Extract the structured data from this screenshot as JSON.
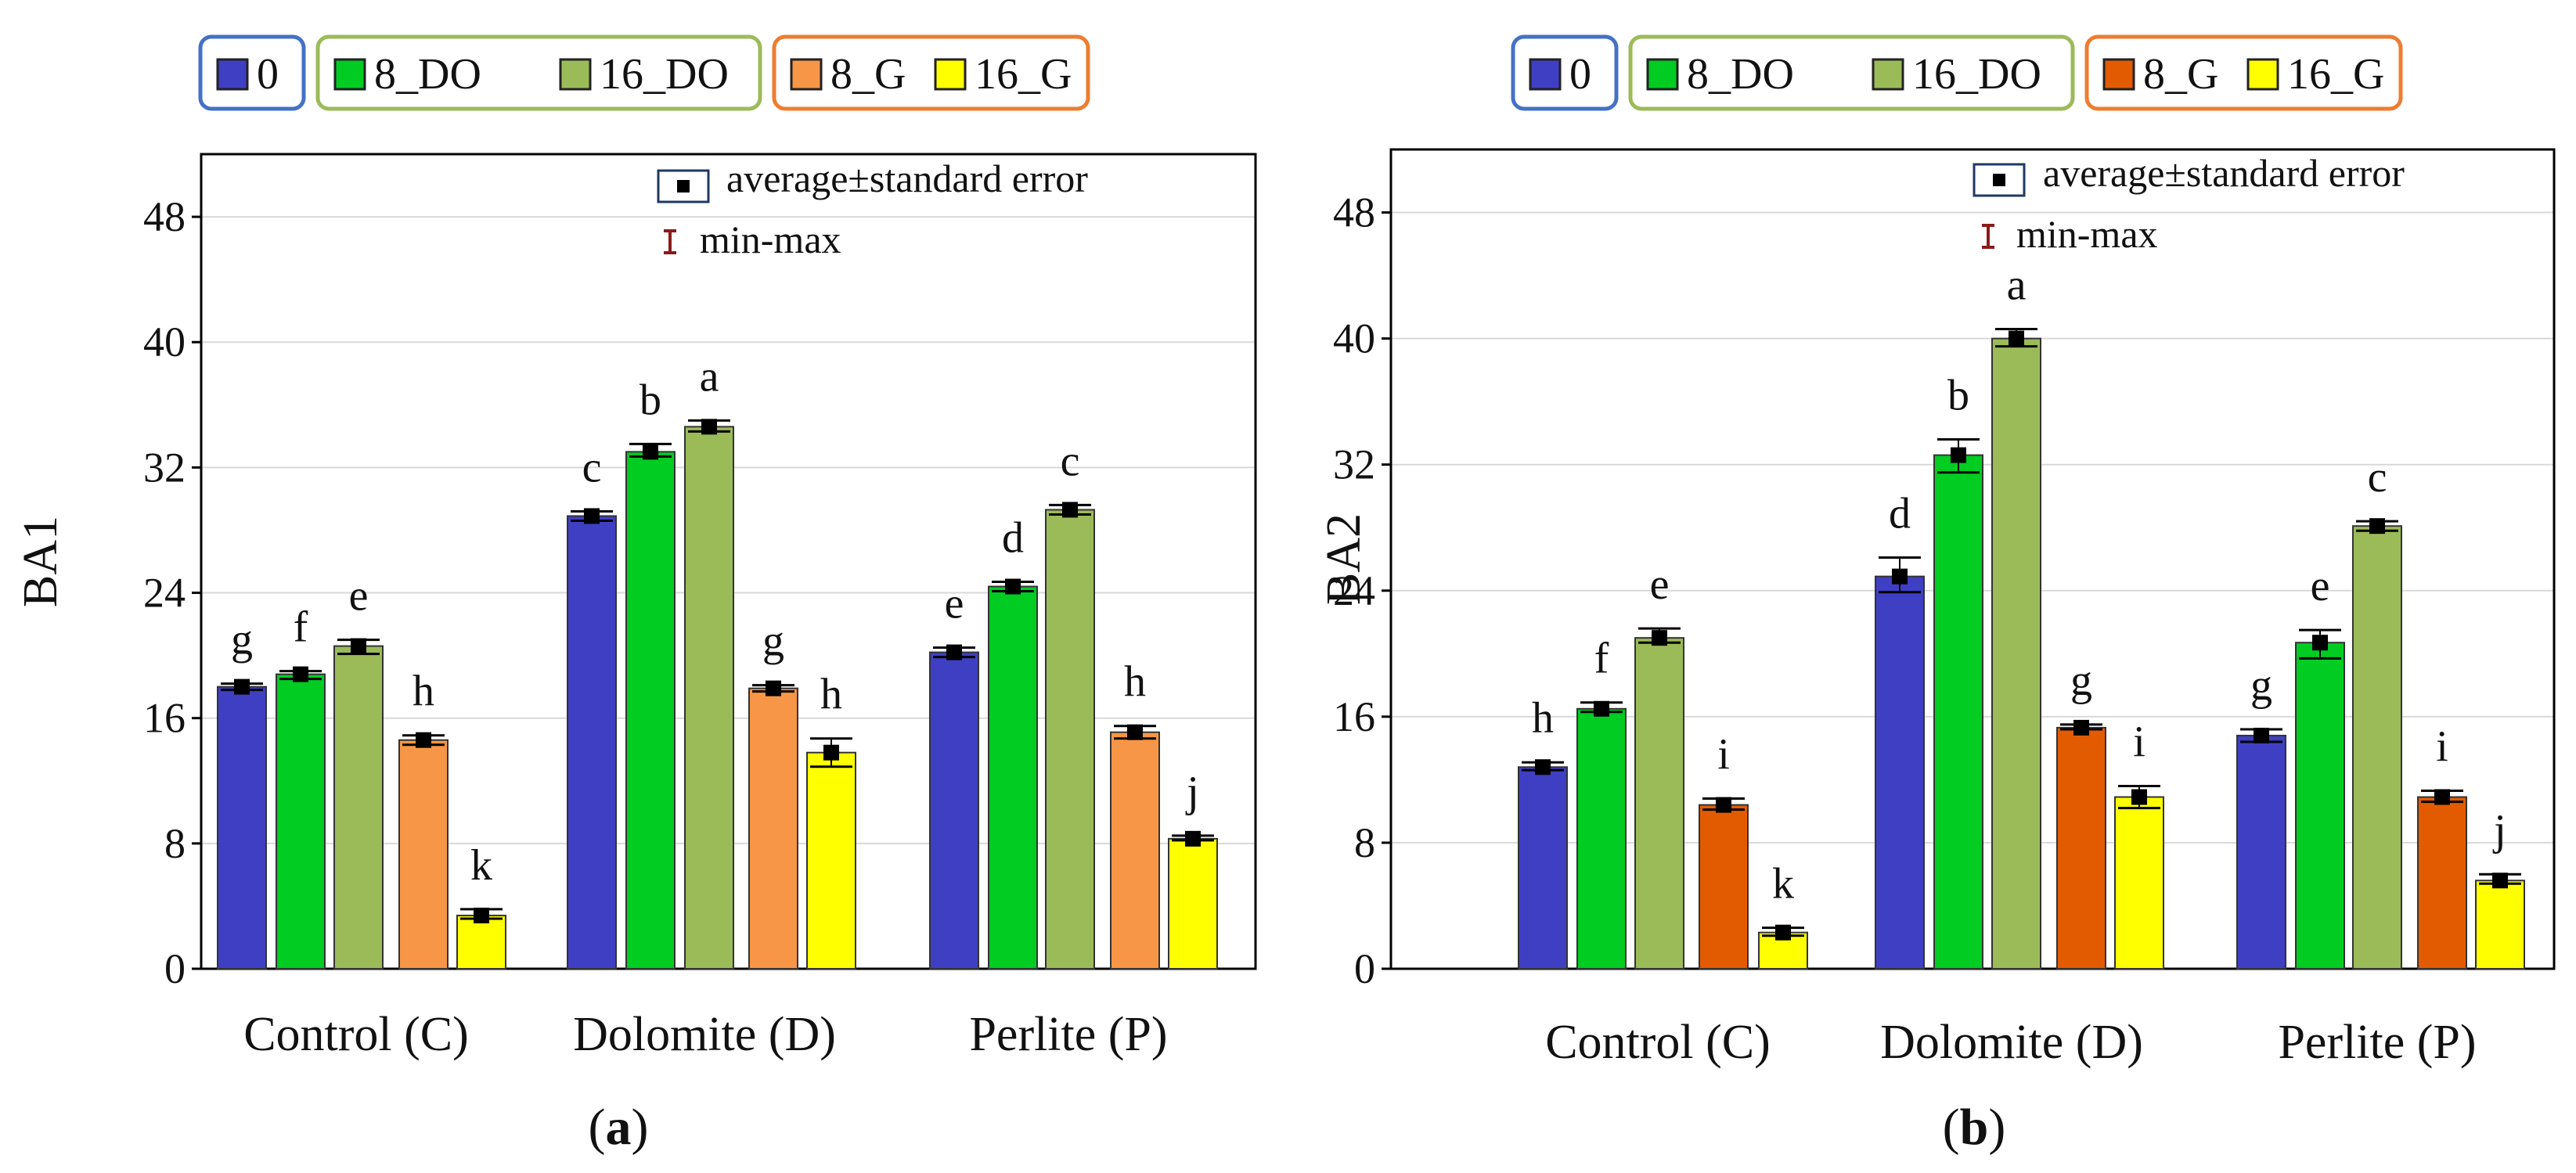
{
  "figure": {
    "series_legend": [
      {
        "name": "0",
        "colors": [
          "#3f3fc4",
          "#3f3fc4"
        ]
      },
      {
        "name": "8_DO",
        "colors": [
          "#00cc22",
          "#00cc22"
        ]
      },
      {
        "name": "16_DO",
        "colors": [
          "#9bbb59",
          "#9bbb59"
        ]
      },
      {
        "name": "8_G",
        "colors": [
          "#f79646",
          "#e35b00"
        ]
      },
      {
        "name": "16_G",
        "colors": [
          "#ffff00",
          "#ffff00"
        ]
      }
    ],
    "legend_groups": [
      {
        "members": [
          "0"
        ],
        "border_color": "#4472c4"
      },
      {
        "members": [
          "8_DO",
          "16_DO"
        ],
        "border_color": "#9bbb59"
      },
      {
        "members": [
          "8_G",
          "16_G"
        ],
        "border_color": "#ed7d31"
      }
    ],
    "stat_legend": {
      "mean_label": "average±standard error",
      "range_label": "min-max",
      "range_color": "#8b1a1a"
    }
  },
  "chart_data": [
    {
      "type": "bar",
      "panel_label": {
        "open": "(",
        "letter": "a",
        "close": ")"
      },
      "title": "",
      "xlabel": "",
      "ylabel": "BA1",
      "ylim": [
        0,
        52
      ],
      "yticks": [
        0,
        8,
        16,
        24,
        32,
        40,
        48
      ],
      "grid": true,
      "categories": [
        "Control (C)",
        "Dolomite (D)",
        "Perlite (P)"
      ],
      "series": [
        {
          "name": "0",
          "color": "#3f3fc4",
          "values": [
            18.0,
            28.9,
            20.2
          ],
          "err": [
            0.2,
            0.3,
            0.3
          ],
          "minmax": [
            [
              17.8,
              18.2
            ],
            [
              28.6,
              29.2
            ],
            [
              19.9,
              20.5
            ]
          ],
          "letters": [
            "g",
            "c",
            "e"
          ]
        },
        {
          "name": "8_DO",
          "color": "#00cc22",
          "values": [
            18.8,
            33.0,
            24.4
          ],
          "err": [
            0.2,
            0.3,
            0.2
          ],
          "minmax": [
            [
              18.5,
              19.0
            ],
            [
              32.7,
              33.5
            ],
            [
              24.1,
              24.7
            ]
          ],
          "letters": [
            "f",
            "b",
            "d"
          ]
        },
        {
          "name": "16_DO",
          "color": "#9bbb59",
          "values": [
            20.6,
            34.6,
            29.3
          ],
          "err": [
            0.3,
            0.3,
            0.2
          ],
          "minmax": [
            [
              20.1,
              21.0
            ],
            [
              34.3,
              35.0
            ],
            [
              29.0,
              29.6
            ]
          ],
          "letters": [
            "e",
            "a",
            "c"
          ]
        },
        {
          "name": "8_G",
          "color": "#f79646",
          "values": [
            14.6,
            17.9,
            15.1
          ],
          "err": [
            0.2,
            0.2,
            0.3
          ],
          "minmax": [
            [
              14.3,
              14.9
            ],
            [
              17.7,
              18.1
            ],
            [
              14.7,
              15.5
            ]
          ],
          "letters": [
            "h",
            "g",
            "h"
          ]
        },
        {
          "name": "16_G",
          "color": "#ffff00",
          "values": [
            3.4,
            13.8,
            8.3
          ],
          "err": [
            0.2,
            0.7,
            0.1
          ],
          "minmax": [
            [
              3.2,
              3.8
            ],
            [
              12.9,
              14.7
            ],
            [
              8.2,
              8.5
            ]
          ],
          "letters": [
            "k",
            "h",
            "j"
          ]
        }
      ]
    },
    {
      "type": "bar",
      "panel_label": {
        "open": "(",
        "letter": "b",
        "close": ")"
      },
      "title": "",
      "xlabel": "",
      "ylabel": "BA2",
      "ylim": [
        0,
        52
      ],
      "yticks": [
        0,
        8,
        16,
        24,
        32,
        40,
        48
      ],
      "grid": true,
      "categories": [
        "Control (C)",
        "Dolomite (D)",
        "Perlite (P)"
      ],
      "series": [
        {
          "name": "0",
          "color": "#3f3fc4",
          "values": [
            12.8,
            24.9,
            14.8
          ],
          "err": [
            0.2,
            0.9,
            0.3
          ],
          "minmax": [
            [
              12.6,
              13.1
            ],
            [
              23.9,
              26.1
            ],
            [
              14.4,
              15.2
            ]
          ],
          "letters": [
            "h",
            "d",
            "g"
          ]
        },
        {
          "name": "8_DO",
          "color": "#00cc22",
          "values": [
            16.5,
            32.6,
            20.7
          ],
          "err": [
            0.2,
            0.8,
            0.7
          ],
          "minmax": [
            [
              16.3,
              16.9
            ],
            [
              31.5,
              33.6
            ],
            [
              19.7,
              21.5
            ]
          ],
          "letters": [
            "f",
            "b",
            "e"
          ]
        },
        {
          "name": "16_DO",
          "color": "#9bbb59",
          "values": [
            21.0,
            40.0,
            28.1
          ],
          "err": [
            0.2,
            0.3,
            0.2
          ],
          "minmax": [
            [
              20.7,
              21.6
            ],
            [
              39.5,
              40.6
            ],
            [
              27.8,
              28.4
            ]
          ],
          "letters": [
            "e",
            "a",
            "c"
          ]
        },
        {
          "name": "8_G",
          "color": "#e35b00",
          "values": [
            10.4,
            15.3,
            10.9
          ],
          "err": [
            0.2,
            0.1,
            0.2
          ],
          "minmax": [
            [
              10.1,
              10.8
            ],
            [
              15.2,
              15.5
            ],
            [
              10.6,
              11.3
            ]
          ],
          "letters": [
            "i",
            "g",
            "i"
          ]
        },
        {
          "name": "16_G",
          "color": "#ffff00",
          "values": [
            2.3,
            10.9,
            5.6
          ],
          "err": [
            0.2,
            0.5,
            0.2
          ],
          "minmax": [
            [
              2.1,
              2.6
            ],
            [
              10.2,
              11.6
            ],
            [
              5.4,
              6.0
            ]
          ],
          "letters": [
            "k",
            "i",
            "j"
          ]
        }
      ]
    }
  ]
}
